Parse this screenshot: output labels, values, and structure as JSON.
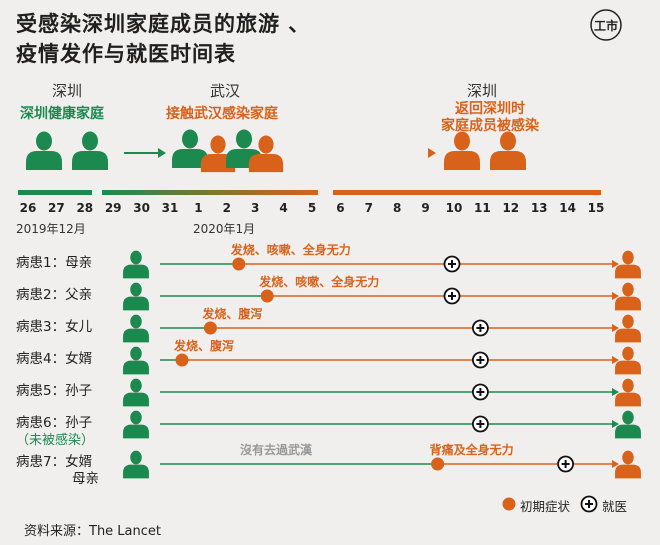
{
  "title_line1": "受感染深圳家庭成员的旅游 、",
  "title_line2": "疫情发作与就医时间表",
  "logo_text": "工市",
  "locations": {
    "left": "深圳",
    "middle": "武汉",
    "right": "深圳"
  },
  "groups": {
    "healthy": "深圳健康家庭",
    "contact": "接触武汉感染家庭",
    "return_line1": "返回深圳时",
    "return_line2": "家庭成员被感染"
  },
  "days": [
    "26",
    "27",
    "28",
    "29",
    "30",
    "31",
    "1",
    "2",
    "3",
    "4",
    "5",
    "6",
    "7",
    "8",
    "9",
    "10",
    "11",
    "12",
    "13",
    "14",
    "15"
  ],
  "month_dec": "2019年12月",
  "month_jan": "2020年1月",
  "patients": [
    {
      "label": "病患1：母亲",
      "symptom": "发烧、咳嗽、全身无力",
      "onset_day": "2",
      "visit_day": "10",
      "infected": true
    },
    {
      "label": "病患2：父亲",
      "symptom": "发烧、咳嗽、全身无力",
      "onset_day": "3",
      "visit_day": "10",
      "infected": true
    },
    {
      "label": "病患3：女儿",
      "symptom": "发烧、腹泻",
      "onset_day": "1",
      "visit_day": "11",
      "infected": true
    },
    {
      "label": "病患4：女婿",
      "symptom": "发烧、腹泻",
      "onset_day": "31",
      "visit_day": "11",
      "infected": true
    },
    {
      "label": "病患5：孙子",
      "symptom": "",
      "onset_day": "",
      "visit_day": "11",
      "infected": true
    },
    {
      "label": "病患6：孙子",
      "sublabel": "（未被感染）",
      "symptom": "",
      "onset_day": "",
      "visit_day": "11",
      "infected": false
    },
    {
      "label": "病患7：女婿",
      "label2": "母亲",
      "note": "沒有去過武漢",
      "symptom": "背痛及全身无力",
      "onset_day": "9",
      "visit_day": "14",
      "infected": true
    }
  ],
  "legend": {
    "onset": "初期症状",
    "visit": "就医"
  },
  "source": "资料来源：The Lancet",
  "colors": {
    "green": "#1c8a4f",
    "orange": "#d9621a",
    "background": "#f0efee"
  }
}
